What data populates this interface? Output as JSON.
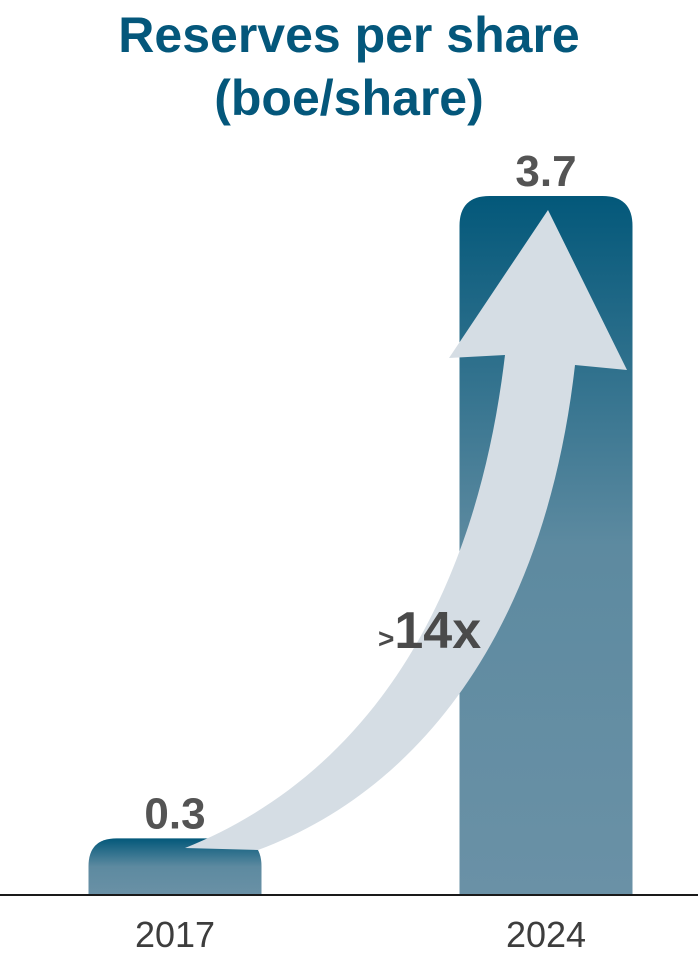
{
  "chart_data": {
    "type": "bar",
    "title_line1": "Reserves per share",
    "title_line2": "(boe/share)",
    "categories": [
      "2017",
      "2024"
    ],
    "values": [
      0.3,
      3.7
    ],
    "value_labels": [
      "0.3",
      "3.7"
    ],
    "annotation": {
      "prefix": ">",
      "text": "14x"
    },
    "ylim": [
      0,
      3.7
    ],
    "grid": false,
    "colors": {
      "bar_top": "#03587a",
      "bar_body": "#6a91a6",
      "arrow": "#d5dde4",
      "title": "#04577b"
    }
  }
}
